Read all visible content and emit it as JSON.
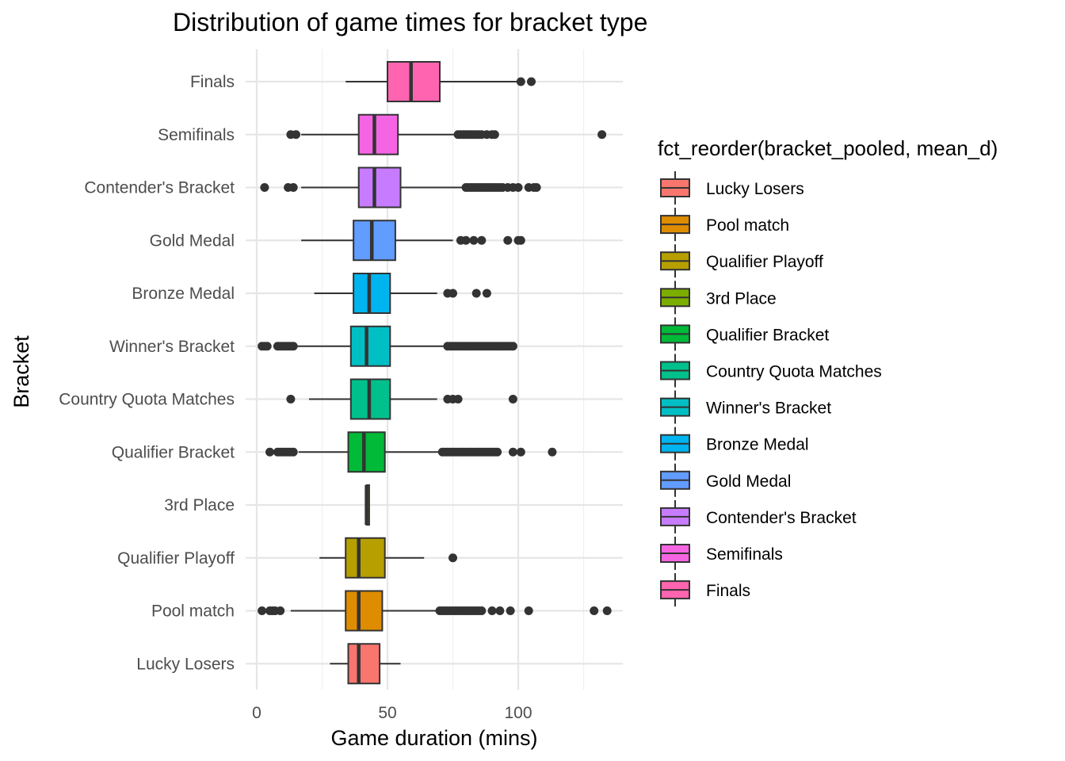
{
  "chart_data": {
    "type": "boxplot",
    "orientation": "horizontal",
    "title": "Distribution of game times for bracket type",
    "xlabel": "Game duration (mins)",
    "ylabel": "Bracket",
    "xlim": [
      -5,
      140
    ],
    "x_ticks": [
      0,
      50,
      100
    ],
    "x_minor_ticks": [
      25,
      75,
      125
    ],
    "grid": true,
    "legend": {
      "title": "fct_reorder(bracket_pooled, mean_d)",
      "placement": "right",
      "entries": [
        {
          "label": "Lucky Losers",
          "color": "#F8766D"
        },
        {
          "label": "Pool match",
          "color": "#DE8C00"
        },
        {
          "label": "Qualifier Playoff",
          "color": "#B79F00"
        },
        {
          "label": "3rd Place",
          "color": "#7CAE00"
        },
        {
          "label": "Qualifier Bracket",
          "color": "#00BA38"
        },
        {
          "label": "Country Quota Matches",
          "color": "#00C08B"
        },
        {
          "label": "Winner's Bracket",
          "color": "#00BFC4"
        },
        {
          "label": "Bronze Medal",
          "color": "#00B4F0"
        },
        {
          "label": "Gold Medal",
          "color": "#619CFF"
        },
        {
          "label": "Contender's Bracket",
          "color": "#C77CFF"
        },
        {
          "label": "Semifinals",
          "color": "#F564E3"
        },
        {
          "label": "Finals",
          "color": "#FF64B0"
        }
      ]
    },
    "categories": [
      "Lucky Losers",
      "Pool match",
      "Qualifier Playoff",
      "3rd Place",
      "Qualifier Bracket",
      "Country Quota Matches",
      "Winner's Bracket",
      "Bronze Medal",
      "Gold Medal",
      "Contender's Bracket",
      "Semifinals",
      "Finals"
    ],
    "series": [
      {
        "category": "Lucky Losers",
        "color": "#F8766D",
        "whisker_low": 28,
        "q1": 35,
        "median": 39,
        "q3": 47,
        "whisker_high": 55,
        "outliers": []
      },
      {
        "category": "Pool match",
        "color": "#DE8C00",
        "whisker_low": 13,
        "q1": 34,
        "median": 39,
        "q3": 48,
        "whisker_high": 69,
        "outliers": [
          2,
          5,
          6,
          7,
          9,
          70,
          71,
          72,
          73,
          74,
          75,
          76,
          77,
          78,
          79,
          80,
          81,
          82,
          83,
          84,
          85,
          86,
          90,
          93,
          97,
          104,
          129,
          134
        ]
      },
      {
        "category": "Qualifier Playoff",
        "color": "#B79F00",
        "whisker_low": 24,
        "q1": 34,
        "median": 39,
        "q3": 49,
        "whisker_high": 64,
        "outliers": [
          75
        ]
      },
      {
        "category": "3rd Place",
        "color": "#7CAE00",
        "whisker_low": 42,
        "q1": 42,
        "median": 42,
        "q3": 43,
        "whisker_high": 43,
        "outliers": []
      },
      {
        "category": "Qualifier Bracket",
        "color": "#00BA38",
        "whisker_low": 16,
        "q1": 35,
        "median": 41,
        "q3": 49,
        "whisker_high": 70,
        "outliers": [
          5,
          8,
          9,
          10,
          11,
          12,
          13,
          14,
          71,
          72,
          73,
          74,
          75,
          76,
          77,
          78,
          79,
          80,
          81,
          82,
          83,
          84,
          85,
          86,
          87,
          88,
          89,
          90,
          91,
          92,
          98,
          101,
          113
        ]
      },
      {
        "category": "Country Quota Matches",
        "color": "#00C08B",
        "whisker_low": 20,
        "q1": 36,
        "median": 43,
        "q3": 51,
        "whisker_high": 69,
        "outliers": [
          13,
          73,
          75,
          77,
          98
        ]
      },
      {
        "category": "Winner's Bracket",
        "color": "#00BFC4",
        "whisker_low": 15,
        "q1": 36,
        "median": 42,
        "q3": 51,
        "whisker_high": 72,
        "outliers": [
          2,
          3,
          4,
          8,
          9,
          10,
          11,
          12,
          13,
          14,
          73,
          74,
          75,
          76,
          77,
          78,
          79,
          80,
          81,
          82,
          83,
          84,
          85,
          86,
          87,
          88,
          89,
          90,
          91,
          92,
          93,
          94,
          95,
          96,
          97,
          98
        ]
      },
      {
        "category": "Bronze Medal",
        "color": "#00B4F0",
        "whisker_low": 22,
        "q1": 37,
        "median": 43,
        "q3": 51,
        "whisker_high": 69,
        "outliers": [
          73,
          75,
          84,
          88
        ]
      },
      {
        "category": "Gold Medal",
        "color": "#619CFF",
        "whisker_low": 17,
        "q1": 37,
        "median": 44,
        "q3": 53,
        "whisker_high": 75,
        "outliers": [
          78,
          80,
          83,
          86,
          96,
          100,
          101
        ]
      },
      {
        "category": "Contender's Bracket",
        "color": "#C77CFF",
        "whisker_low": 17,
        "q1": 39,
        "median": 45,
        "q3": 55,
        "whisker_high": 79,
        "outliers": [
          3,
          12,
          14,
          80,
          81,
          82,
          83,
          84,
          85,
          86,
          87,
          88,
          89,
          90,
          91,
          92,
          93,
          94,
          96,
          98,
          100,
          104,
          106,
          107
        ]
      },
      {
        "category": "Semifinals",
        "color": "#F564E3",
        "whisker_low": 17,
        "q1": 39,
        "median": 45,
        "q3": 54,
        "whisker_high": 76,
        "outliers": [
          13,
          15,
          77,
          78,
          79,
          80,
          81,
          82,
          83,
          84,
          85,
          86,
          88,
          90,
          91,
          132
        ]
      },
      {
        "category": "Finals",
        "color": "#FF64B0",
        "whisker_low": 34,
        "q1": 50,
        "median": 59,
        "q3": 70,
        "whisker_high": 100,
        "outliers": [
          101,
          105
        ]
      }
    ]
  }
}
